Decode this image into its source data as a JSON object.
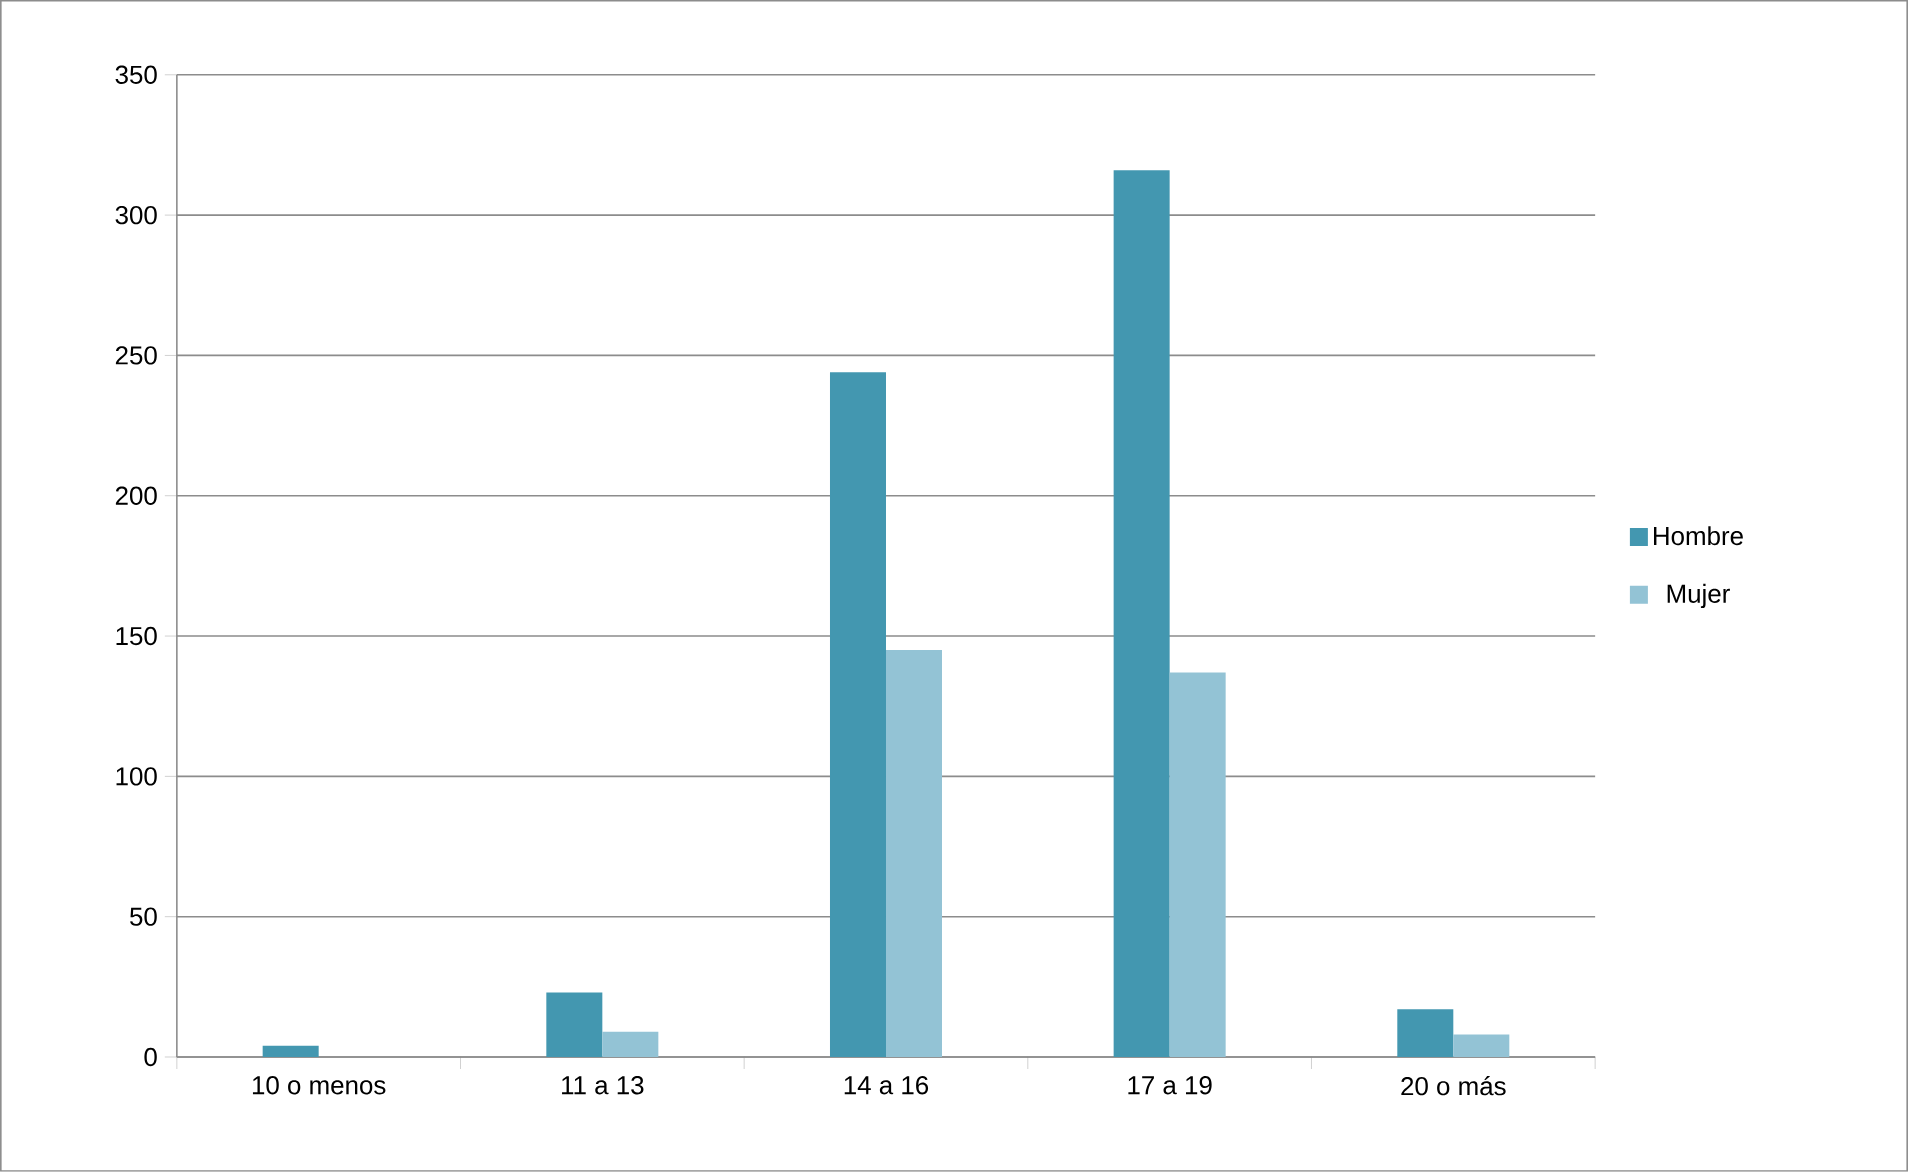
{
  "chart_data": {
    "type": "bar",
    "categories": [
      "10 o menos",
      "11 a 13",
      "14 a 16",
      "17 a 19",
      "20 o más"
    ],
    "series": [
      {
        "name": "Hombre",
        "color": "#4397b0",
        "values": [
          4,
          23,
          244,
          316,
          17
        ]
      },
      {
        "name": "Mujer",
        "color": "#93c3d5",
        "values": [
          0,
          9,
          145,
          137,
          8
        ]
      }
    ],
    "ylim": [
      0,
      350
    ],
    "yticks": [
      0,
      50,
      100,
      150,
      200,
      250,
      300,
      350
    ],
    "grid": "y",
    "legend": "right"
  }
}
